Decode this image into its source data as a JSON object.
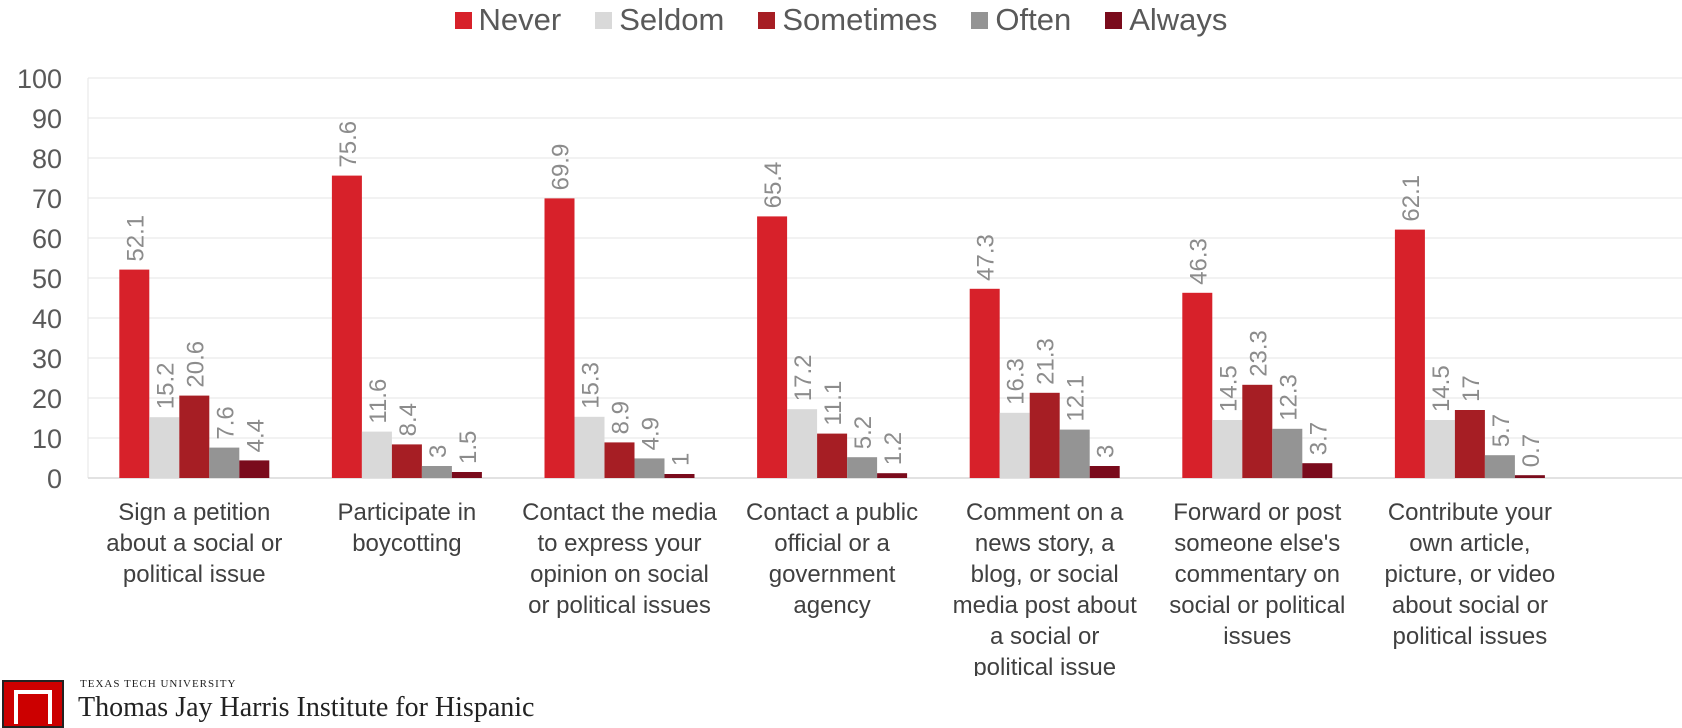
{
  "chart_data": {
    "type": "bar",
    "categories": [
      [
        "Sign a petition",
        "about a social or",
        "political issue"
      ],
      [
        "Participate in",
        "boycotting"
      ],
      [
        "Contact the media",
        "to express your",
        "opinion on social",
        "or political issues"
      ],
      [
        "Contact a public",
        "official or a",
        "government",
        "agency"
      ],
      [
        "Comment on a",
        "news story, a",
        "blog, or social",
        "media post about",
        "a social or",
        "political issue"
      ],
      [
        "Forward or post",
        "someone else's",
        "commentary on",
        "social or political",
        "issues"
      ],
      [
        "Contribute your",
        "own article,",
        "picture, or video",
        "about social or",
        "political issues"
      ]
    ],
    "series": [
      {
        "name": "Never",
        "color": "#d7212a",
        "values": [
          52.1,
          75.6,
          69.9,
          65.4,
          47.3,
          46.3,
          62.1
        ]
      },
      {
        "name": "Seldom",
        "color": "#d9d9d9",
        "values": [
          15.2,
          11.6,
          15.3,
          17.2,
          16.3,
          14.5,
          14.5
        ]
      },
      {
        "name": "Sometimes",
        "color": "#a61e24",
        "values": [
          20.6,
          8.4,
          8.9,
          11.1,
          21.3,
          23.3,
          17
        ]
      },
      {
        "name": "Often",
        "color": "#949494",
        "values": [
          7.6,
          3,
          4.9,
          5.2,
          12.1,
          12.3,
          5.7
        ]
      },
      {
        "name": "Always",
        "color": "#7a0b1c",
        "values": [
          4.4,
          1.5,
          1,
          1.2,
          3,
          3.7,
          0.7
        ]
      }
    ],
    "ylim": [
      0,
      100
    ],
    "yticks": [
      0,
      10,
      20,
      30,
      40,
      50,
      60,
      70,
      80,
      90,
      100
    ],
    "grid": true,
    "legend_position": "top"
  },
  "logo": {
    "small_text": "TEXAS TECH UNIVERSITY",
    "large_text": "Thomas Jay Harris Institute for Hispanic"
  }
}
